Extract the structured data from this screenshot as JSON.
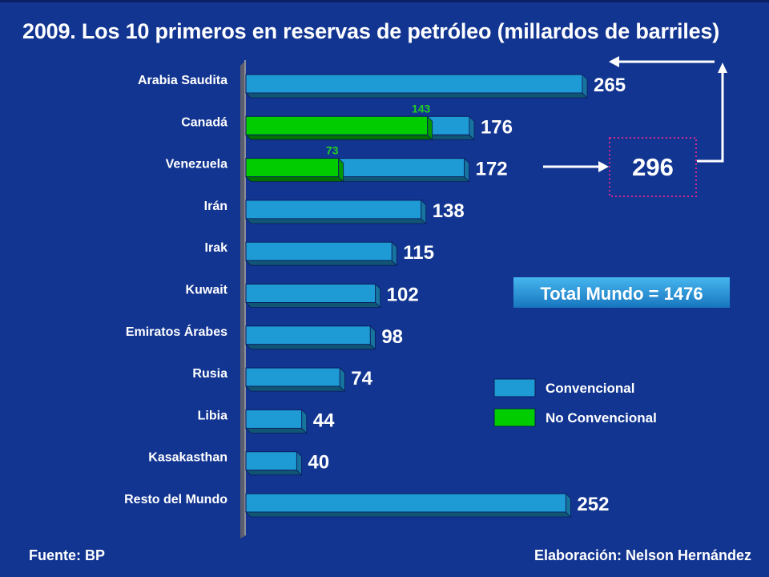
{
  "title": "2009. Los 10 primeros en reservas de petróleo (millardos de barriles)",
  "footer": {
    "source": "Fuente: BP",
    "credit": "Elaboración: Nelson Hernández"
  },
  "chart_data": {
    "type": "bar",
    "orientation": "horizontal",
    "categories": [
      "Arabia Saudita",
      "Canadá",
      "Venezuela",
      "Irán",
      "Irak",
      "Kuwait",
      "Emiratos Árabes",
      "Rusia",
      "Libia",
      "Kasakasthan",
      "Resto del Mundo"
    ],
    "series": [
      {
        "name": "Convencional",
        "color": "#1e9ad4",
        "values": [
          265,
          33,
          99,
          138,
          115,
          102,
          98,
          74,
          44,
          40,
          252
        ]
      },
      {
        "name": "No Convencional",
        "color": "#00cc00",
        "values": [
          0,
          143,
          73,
          0,
          0,
          0,
          0,
          0,
          0,
          0,
          0
        ]
      }
    ],
    "totals": [
      265,
      176,
      172,
      138,
      115,
      102,
      98,
      74,
      44,
      40,
      252
    ],
    "unconventional_labels": [
      "",
      "143",
      "73",
      "",
      "",
      "",
      "",
      "",
      "",
      "",
      ""
    ],
    "legend": {
      "position": "right",
      "items": [
        "Convencional",
        "No Convencional"
      ]
    },
    "annotations": {
      "combined_value": "296",
      "total_label": "Total Mundo = 1476"
    },
    "axis": {
      "xlim": [
        0,
        265
      ],
      "grid": false
    }
  }
}
